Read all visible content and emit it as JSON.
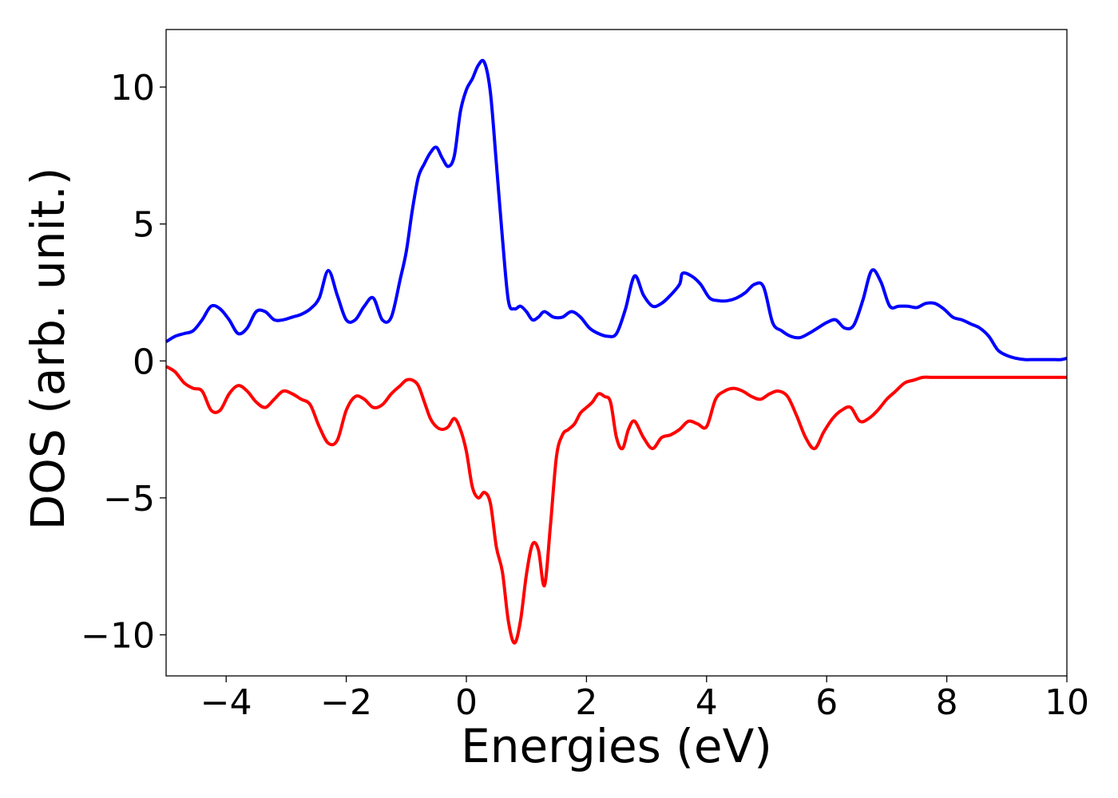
{
  "chart_data": {
    "type": "line",
    "title": "",
    "xlabel": "Energies (eV)",
    "ylabel": "DOS (arb. unit.)",
    "xlim": [
      -5,
      10
    ],
    "ylim": [
      -11.5,
      12.1
    ],
    "xticks": [
      -4,
      -2,
      0,
      2,
      4,
      6,
      8,
      10
    ],
    "xtick_labels": [
      "−4",
      "−2",
      "0",
      "2",
      "4",
      "6",
      "8",
      "10"
    ],
    "yticks": [
      -10,
      -5,
      0,
      5,
      10
    ],
    "ytick_labels": [
      "−10",
      "−5",
      "0",
      "5",
      "10"
    ],
    "grid": false,
    "legend": "none",
    "series": [
      {
        "color": "#0000ff",
        "x": [
          -5.0,
          -4.85,
          -4.7,
          -4.55,
          -4.4,
          -4.25,
          -4.1,
          -3.95,
          -3.8,
          -3.65,
          -3.5,
          -3.35,
          -3.2,
          -3.05,
          -2.9,
          -2.75,
          -2.6,
          -2.45,
          -2.3,
          -2.15,
          -2.0,
          -1.85,
          -1.7,
          -1.55,
          -1.4,
          -1.25,
          -1.1,
          -1.0,
          -0.9,
          -0.8,
          -0.7,
          -0.6,
          -0.5,
          -0.4,
          -0.3,
          -0.2,
          -0.1,
          0.0,
          0.1,
          0.2,
          0.3,
          0.4,
          0.5,
          0.6,
          0.7,
          0.8,
          0.9,
          1.0,
          1.1,
          1.2,
          1.3,
          1.45,
          1.6,
          1.75,
          1.9,
          2.05,
          2.2,
          2.35,
          2.5,
          2.65,
          2.8,
          2.95,
          3.1,
          3.25,
          3.4,
          3.55,
          3.6,
          3.75,
          3.9,
          4.05,
          4.2,
          4.35,
          4.5,
          4.65,
          4.8,
          4.95,
          5.1,
          5.25,
          5.4,
          5.55,
          5.7,
          5.85,
          6.0,
          6.15,
          6.3,
          6.45,
          6.6,
          6.75,
          6.9,
          7.05,
          7.2,
          7.35,
          7.5,
          7.65,
          7.8,
          7.95,
          8.1,
          8.25,
          8.4,
          8.55,
          8.7,
          8.85,
          9.0,
          9.15,
          9.3,
          9.45,
          9.6,
          9.75,
          9.9,
          10.0
        ],
        "y": [
          0.7,
          0.9,
          1.0,
          1.1,
          1.5,
          2.0,
          1.9,
          1.5,
          1.0,
          1.2,
          1.8,
          1.8,
          1.5,
          1.5,
          1.6,
          1.7,
          1.9,
          2.3,
          3.3,
          2.4,
          1.5,
          1.5,
          2.0,
          2.3,
          1.5,
          1.6,
          3.0,
          4.0,
          5.5,
          6.7,
          7.2,
          7.6,
          7.8,
          7.4,
          7.1,
          7.5,
          9.1,
          9.9,
          10.3,
          10.8,
          10.9,
          9.8,
          7.2,
          4.5,
          2.2,
          1.9,
          2.0,
          1.8,
          1.5,
          1.6,
          1.8,
          1.6,
          1.6,
          1.8,
          1.6,
          1.2,
          1.0,
          0.9,
          1.0,
          1.9,
          3.1,
          2.4,
          2.0,
          2.1,
          2.4,
          2.8,
          3.2,
          3.1,
          2.8,
          2.3,
          2.2,
          2.2,
          2.3,
          2.5,
          2.8,
          2.7,
          1.4,
          1.1,
          0.9,
          0.85,
          1.0,
          1.2,
          1.4,
          1.5,
          1.2,
          1.3,
          2.2,
          3.3,
          2.9,
          2.0,
          2.0,
          2.0,
          1.95,
          2.1,
          2.1,
          1.9,
          1.6,
          1.5,
          1.35,
          1.2,
          0.9,
          0.4,
          0.2,
          0.1,
          0.05,
          0.05,
          0.05,
          0.05,
          0.05,
          0.1
        ]
      },
      {
        "color": "#ff0000",
        "x": [
          -5.0,
          -4.85,
          -4.7,
          -4.55,
          -4.4,
          -4.25,
          -4.1,
          -3.95,
          -3.8,
          -3.65,
          -3.5,
          -3.35,
          -3.2,
          -3.05,
          -2.9,
          -2.75,
          -2.6,
          -2.45,
          -2.3,
          -2.15,
          -2.0,
          -1.85,
          -1.7,
          -1.55,
          -1.4,
          -1.25,
          -1.1,
          -1.0,
          -0.9,
          -0.8,
          -0.7,
          -0.6,
          -0.5,
          -0.4,
          -0.3,
          -0.2,
          -0.1,
          0.0,
          0.1,
          0.2,
          0.3,
          0.4,
          0.5,
          0.6,
          0.7,
          0.8,
          0.9,
          1.0,
          1.1,
          1.2,
          1.3,
          1.4,
          1.5,
          1.6,
          1.7,
          1.8,
          1.9,
          2.0,
          2.1,
          2.2,
          2.3,
          2.4,
          2.5,
          2.6,
          2.7,
          2.8,
          2.95,
          3.1,
          3.25,
          3.4,
          3.55,
          3.7,
          3.85,
          4.0,
          4.15,
          4.3,
          4.45,
          4.6,
          4.75,
          4.9,
          5.05,
          5.2,
          5.35,
          5.5,
          5.65,
          5.8,
          5.95,
          6.1,
          6.25,
          6.4,
          6.55,
          6.7,
          6.85,
          7.0,
          7.15,
          7.3,
          7.45,
          7.6,
          7.75,
          7.9,
          8.05,
          8.2,
          8.35,
          8.5,
          8.65,
          8.8,
          8.95,
          9.1,
          9.25,
          9.4,
          9.55,
          9.7,
          9.85,
          10.0
        ],
        "y": [
          -0.2,
          -0.4,
          -0.8,
          -1.0,
          -1.1,
          -1.8,
          -1.8,
          -1.2,
          -0.9,
          -1.1,
          -1.5,
          -1.7,
          -1.4,
          -1.1,
          -1.2,
          -1.4,
          -1.6,
          -2.4,
          -3.0,
          -2.9,
          -1.8,
          -1.3,
          -1.4,
          -1.7,
          -1.6,
          -1.2,
          -0.9,
          -0.7,
          -0.7,
          -0.9,
          -1.5,
          -2.1,
          -2.4,
          -2.5,
          -2.4,
          -2.1,
          -2.5,
          -3.3,
          -4.6,
          -5.0,
          -4.8,
          -5.2,
          -6.8,
          -7.7,
          -9.5,
          -10.3,
          -9.5,
          -7.8,
          -6.7,
          -6.9,
          -8.2,
          -6.0,
          -3.5,
          -2.7,
          -2.5,
          -2.3,
          -1.9,
          -1.7,
          -1.5,
          -1.2,
          -1.3,
          -1.5,
          -2.8,
          -3.2,
          -2.5,
          -2.2,
          -2.8,
          -3.2,
          -2.8,
          -2.7,
          -2.5,
          -2.2,
          -2.3,
          -2.4,
          -1.4,
          -1.1,
          -1.0,
          -1.1,
          -1.3,
          -1.4,
          -1.2,
          -1.1,
          -1.3,
          -2.0,
          -2.8,
          -3.2,
          -2.6,
          -2.1,
          -1.8,
          -1.7,
          -2.2,
          -2.1,
          -1.8,
          -1.4,
          -1.1,
          -0.8,
          -0.7,
          -0.6,
          -0.6,
          -0.6,
          -0.6,
          -0.6,
          -0.6,
          -0.6,
          -0.6,
          -0.6,
          -0.6,
          -0.6,
          -0.6,
          -0.6,
          -0.6,
          -0.6,
          -0.6,
          -0.6
        ]
      }
    ]
  }
}
